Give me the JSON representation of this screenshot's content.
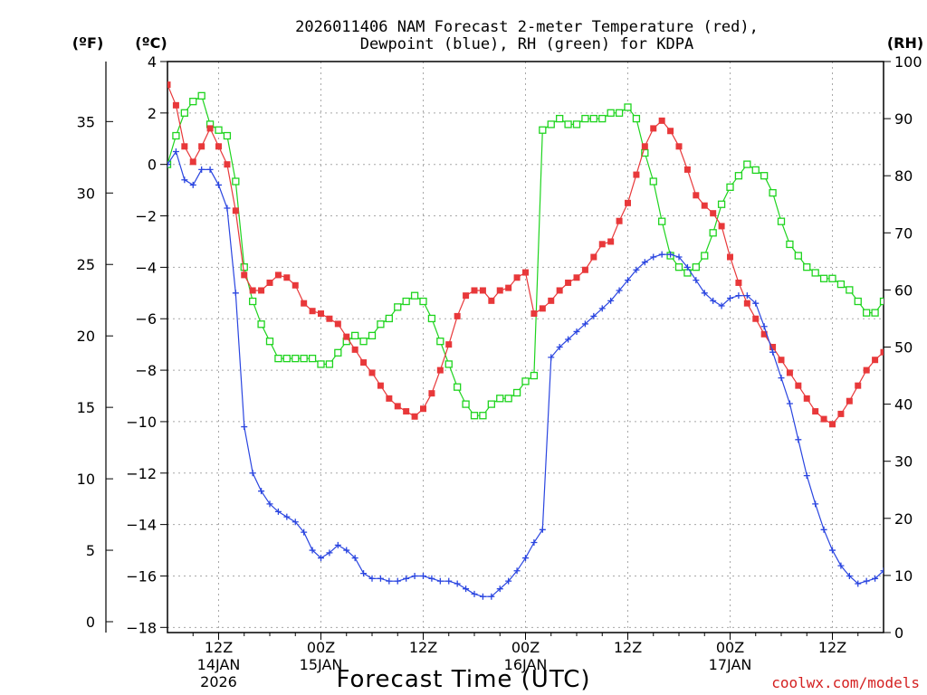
{
  "chart_data": {
    "type": "line",
    "title": [
      "2026011406 NAM Forecast 2-meter Temperature (red),",
      "Dewpoint (blue), RH (green) for KDPA"
    ],
    "xlabel": "Forecast Time (UTC)",
    "credit": "coolwx.com/models",
    "units": {
      "left_outer": "(ºF)",
      "left_inner": "(ºC)",
      "right": "(RH)"
    },
    "x_range_hours": [
      0,
      84
    ],
    "c_range": [
      -18.2,
      4
    ],
    "f_range": [
      -0.76,
      39.2
    ],
    "rh_range": [
      0,
      100
    ],
    "c_ticks": [
      "4",
      "2",
      "0",
      "−2",
      "−4",
      "−6",
      "−8",
      "−10",
      "−12",
      "−14",
      "−16",
      "−18"
    ],
    "c_tick_values": [
      4,
      2,
      0,
      -2,
      -4,
      -6,
      -8,
      -10,
      -12,
      -14,
      -16,
      -18
    ],
    "f_ticks": [
      "35",
      "30",
      "25",
      "20",
      "15",
      "10",
      "5",
      "0"
    ],
    "f_tick_values": [
      35,
      30,
      25,
      20,
      15,
      10,
      5,
      0
    ],
    "rh_ticks": [
      "100",
      "90",
      "80",
      "70",
      "60",
      "50",
      "40",
      "30",
      "20",
      "10",
      "0"
    ],
    "rh_tick_values": [
      100,
      90,
      80,
      70,
      60,
      50,
      40,
      30,
      20,
      10,
      0
    ],
    "x_ticks": [
      {
        "h": 6,
        "lines": [
          "12Z",
          "14JAN",
          "2026"
        ]
      },
      {
        "h": 18,
        "lines": [
          "00Z",
          "15JAN"
        ]
      },
      {
        "h": 30,
        "lines": [
          "12Z"
        ]
      },
      {
        "h": 42,
        "lines": [
          "00Z",
          "16JAN"
        ]
      },
      {
        "h": 54,
        "lines": [
          "12Z"
        ]
      },
      {
        "h": 66,
        "lines": [
          "00Z",
          "17JAN"
        ]
      },
      {
        "h": 78,
        "lines": [
          "12Z"
        ]
      }
    ],
    "series": [
      {
        "name": "Temperature",
        "units": "C",
        "color": "#e8383a",
        "marker": "square-filled",
        "x": [
          0,
          1,
          2,
          3,
          4,
          5,
          6,
          7,
          8,
          9,
          10,
          11,
          12,
          13,
          14,
          15,
          16,
          17,
          18,
          19,
          20,
          21,
          22,
          23,
          24,
          25,
          26,
          27,
          28,
          29,
          30,
          31,
          32,
          33,
          34,
          35,
          36,
          37,
          38,
          39,
          40,
          41,
          42,
          43,
          44,
          45,
          46,
          47,
          48,
          49,
          50,
          51,
          52,
          53,
          54,
          55,
          56,
          57,
          58,
          59,
          60,
          61,
          62,
          63,
          64,
          65,
          66,
          67,
          68,
          69,
          70,
          71,
          72,
          73,
          74,
          75,
          76,
          77,
          78,
          79,
          80,
          81,
          82,
          83,
          84
        ],
        "values": [
          3.1,
          2.3,
          0.7,
          0.1,
          0.7,
          1.4,
          0.7,
          0.0,
          -1.8,
          -4.3,
          -4.9,
          -4.9,
          -4.6,
          -4.3,
          -4.4,
          -4.7,
          -5.4,
          -5.7,
          -5.8,
          -6.0,
          -6.2,
          -6.7,
          -7.2,
          -7.7,
          -8.1,
          -8.6,
          -9.1,
          -9.4,
          -9.6,
          -9.8,
          -9.5,
          -8.9,
          -8.0,
          -7.0,
          -5.9,
          -5.1,
          -4.9,
          -4.9,
          -5.3,
          -4.9,
          -4.8,
          -4.4,
          -4.2,
          -5.8,
          -5.6,
          -5.3,
          -4.9,
          -4.6,
          -4.4,
          -4.1,
          -3.6,
          -3.1,
          -3.0,
          -2.2,
          -1.5,
          -0.4,
          0.7,
          1.4,
          1.7,
          1.3,
          0.7,
          -0.2,
          -1.2,
          -1.6,
          -1.9,
          -2.4,
          -3.6,
          -4.6,
          -5.4,
          -6.0,
          -6.6,
          -7.1,
          -7.6,
          -8.1,
          -8.6,
          -9.1,
          -9.6,
          -9.9,
          -10.1,
          -9.7,
          -9.2,
          -8.6,
          -8.0,
          -7.6,
          -7.3
        ]
      },
      {
        "name": "Dewpoint",
        "units": "C",
        "color": "#2a45e0",
        "marker": "plus",
        "x": [
          0,
          1,
          2,
          3,
          4,
          5,
          6,
          7,
          8,
          9,
          10,
          11,
          12,
          13,
          14,
          15,
          16,
          17,
          18,
          19,
          20,
          21,
          22,
          23,
          24,
          25,
          26,
          27,
          28,
          29,
          30,
          31,
          32,
          33,
          34,
          35,
          36,
          37,
          38,
          39,
          40,
          41,
          42,
          43,
          44,
          45,
          46,
          47,
          48,
          49,
          50,
          51,
          52,
          53,
          54,
          55,
          56,
          57,
          58,
          59,
          60,
          61,
          62,
          63,
          64,
          65,
          66,
          67,
          68,
          69,
          70,
          71,
          72,
          73,
          74,
          75,
          76,
          77,
          78,
          79,
          80,
          81,
          82,
          83,
          84
        ],
        "values": [
          0.0,
          0.5,
          -0.6,
          -0.8,
          -0.2,
          -0.2,
          -0.8,
          -1.7,
          -5.0,
          -10.2,
          -12.0,
          -12.7,
          -13.2,
          -13.5,
          -13.7,
          -13.9,
          -14.3,
          -15.0,
          -15.3,
          -15.1,
          -14.8,
          -15.0,
          -15.3,
          -15.9,
          -16.1,
          -16.1,
          -16.2,
          -16.2,
          -16.1,
          -16.0,
          -16.0,
          -16.1,
          -16.2,
          -16.2,
          -16.3,
          -16.5,
          -16.7,
          -16.8,
          -16.8,
          -16.5,
          -16.2,
          -15.8,
          -15.3,
          -14.7,
          -14.2,
          -7.5,
          -7.1,
          -6.8,
          -6.5,
          -6.2,
          -5.9,
          -5.6,
          -5.3,
          -4.9,
          -4.5,
          -4.1,
          -3.8,
          -3.6,
          -3.5,
          -3.5,
          -3.6,
          -4.0,
          -4.5,
          -5.0,
          -5.3,
          -5.5,
          -5.2,
          -5.1,
          -5.1,
          -5.4,
          -6.3,
          -7.3,
          -8.3,
          -9.3,
          -10.7,
          -12.1,
          -13.2,
          -14.2,
          -15.0,
          -15.6,
          -16.0,
          -16.3,
          -16.2,
          -16.1,
          -15.8
        ]
      },
      {
        "name": "RH",
        "units": "%",
        "color": "#1ed41e",
        "marker": "square-open",
        "x": [
          0,
          1,
          2,
          3,
          4,
          5,
          6,
          7,
          8,
          9,
          10,
          11,
          12,
          13,
          14,
          15,
          16,
          17,
          18,
          19,
          20,
          21,
          22,
          23,
          24,
          25,
          26,
          27,
          28,
          29,
          30,
          31,
          32,
          33,
          34,
          35,
          36,
          37,
          38,
          39,
          40,
          41,
          42,
          43,
          44,
          45,
          46,
          47,
          48,
          49,
          50,
          51,
          52,
          53,
          54,
          55,
          56,
          57,
          58,
          59,
          60,
          61,
          62,
          63,
          64,
          65,
          66,
          67,
          68,
          69,
          70,
          71,
          72,
          73,
          74,
          75,
          76,
          77,
          78,
          79,
          80,
          81,
          82,
          83,
          84
        ],
        "values": [
          82,
          87,
          91,
          93,
          94,
          89,
          88,
          87,
          79,
          64,
          58,
          54,
          51,
          48,
          48,
          48,
          48,
          48,
          47,
          47,
          49,
          51,
          52,
          51,
          52,
          54,
          55,
          57,
          58,
          59,
          58,
          55,
          51,
          47,
          43,
          40,
          38,
          38,
          40,
          41,
          41,
          42,
          44,
          45,
          88,
          89,
          90,
          89,
          89,
          90,
          90,
          90,
          91,
          91,
          92,
          90,
          84,
          79,
          72,
          66,
          64,
          63,
          64,
          66,
          70,
          75,
          78,
          80,
          82,
          81,
          80,
          77,
          72,
          68,
          66,
          64,
          63,
          62,
          62,
          61,
          60,
          58,
          56,
          56,
          58
        ]
      }
    ]
  }
}
